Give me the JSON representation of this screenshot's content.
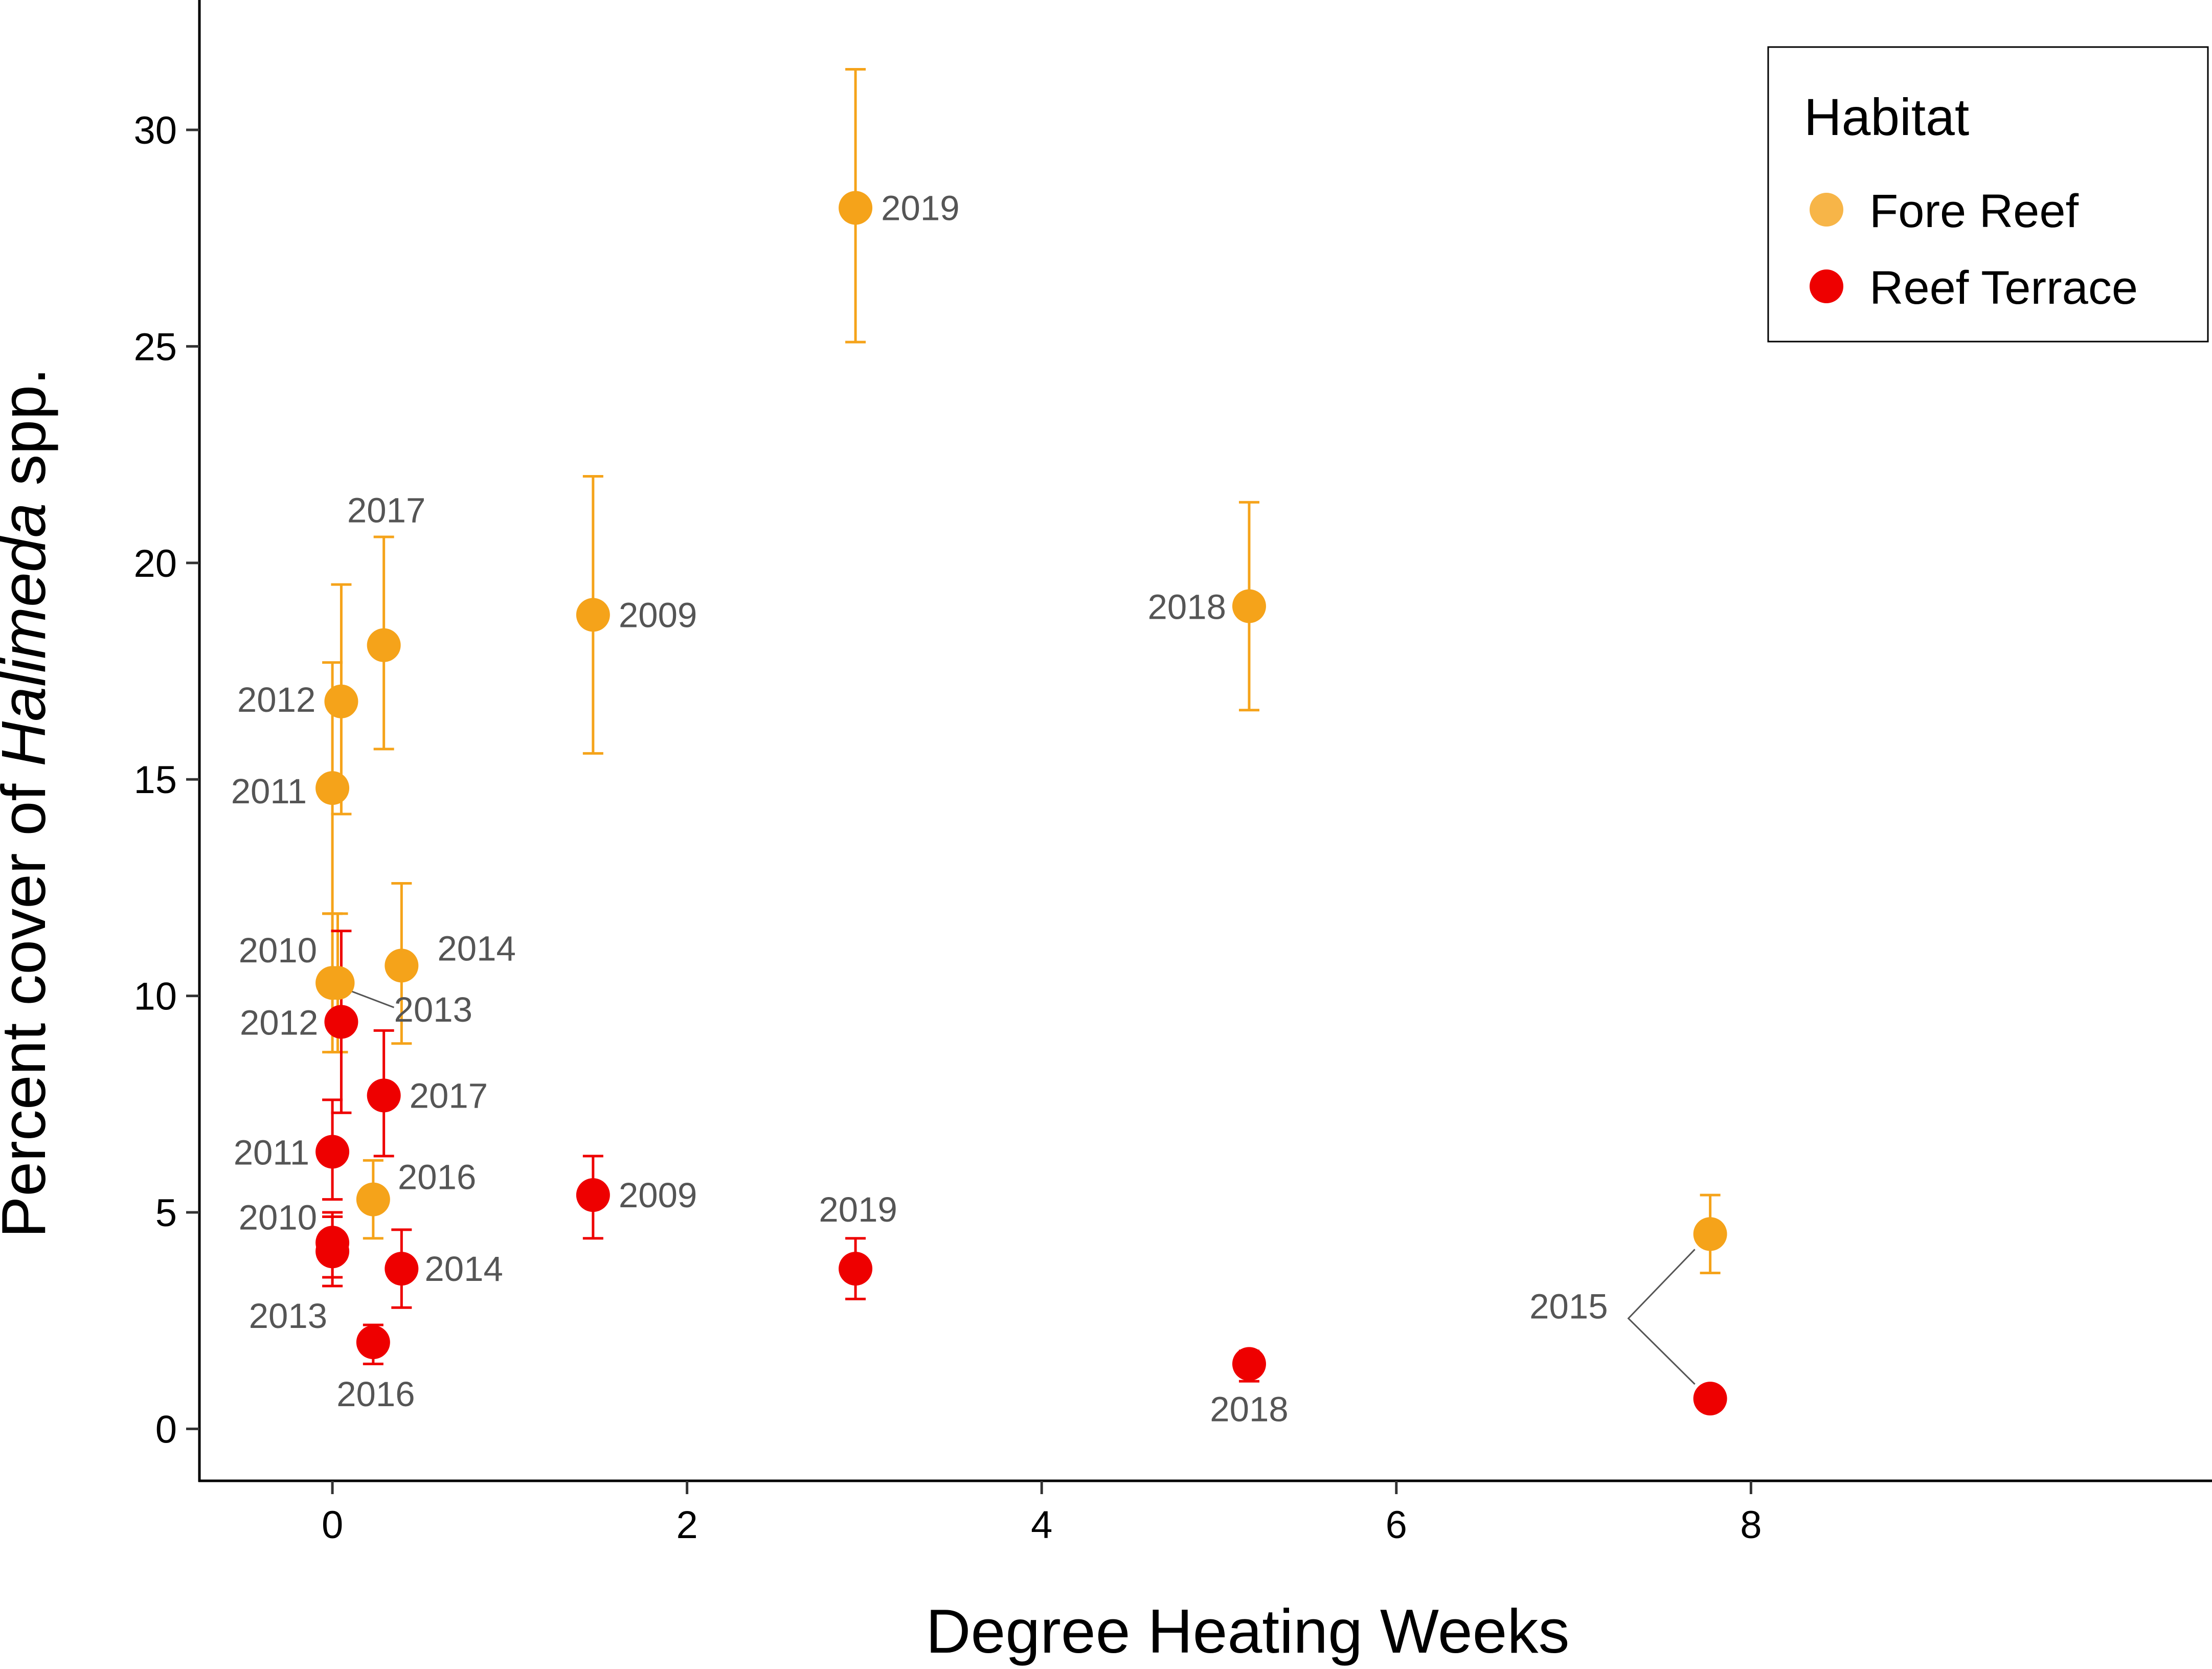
{
  "chart_data": {
    "type": "scatter",
    "title": "",
    "xlabel": "Degree Heating Weeks",
    "ylabel_prefix": "Percent cover of ",
    "ylabel_italic": "Halimeda",
    "ylabel_suffix": " spp.",
    "xlim": [
      -0.75,
      10.6
    ],
    "ylim": [
      -1.2,
      33
    ],
    "x_ticks": [
      0,
      2,
      4,
      6,
      8
    ],
    "y_ticks": [
      0,
      5,
      10,
      15,
      20,
      25,
      30
    ],
    "grid": false,
    "legend": {
      "title": "Habitat",
      "position": "top-right",
      "entries": [
        {
          "label": "Fore Reef",
          "color": "#F5A31A"
        },
        {
          "label": "Reef Terrace",
          "color": "#EE0000"
        }
      ]
    },
    "series": [
      {
        "name": "Fore Reef",
        "color": "#F5A31A",
        "points": [
          {
            "year": "2009",
            "x": 1.47,
            "y": 18.8,
            "lo": 15.6,
            "hi": 22.0
          },
          {
            "year": "2010",
            "x": 0.0,
            "y": 10.3,
            "lo": 8.7,
            "hi": 11.9
          },
          {
            "year": "2011",
            "x": 0.0,
            "y": 14.8,
            "lo": 11.9,
            "hi": 17.7
          },
          {
            "year": "2012",
            "x": 0.05,
            "y": 16.8,
            "lo": 14.2,
            "hi": 19.5
          },
          {
            "year": "2013",
            "x": 0.03,
            "y": 10.3,
            "lo": 8.7,
            "hi": 11.9
          },
          {
            "year": "2014",
            "x": 0.39,
            "y": 10.7,
            "lo": 8.9,
            "hi": 12.6
          },
          {
            "year": "2015",
            "x": 7.77,
            "y": 4.5,
            "lo": 3.6,
            "hi": 5.4
          },
          {
            "year": "2016",
            "x": 0.23,
            "y": 5.3,
            "lo": 4.4,
            "hi": 6.2
          },
          {
            "year": "2017",
            "x": 0.29,
            "y": 18.1,
            "lo": 15.7,
            "hi": 20.6
          },
          {
            "year": "2018",
            "x": 5.17,
            "y": 19.0,
            "lo": 16.6,
            "hi": 21.4
          },
          {
            "year": "2019",
            "x": 2.95,
            "y": 28.2,
            "lo": 25.1,
            "hi": 31.4
          }
        ]
      },
      {
        "name": "Reef Terrace",
        "color": "#EE0000",
        "points": [
          {
            "year": "2009",
            "x": 1.47,
            "y": 5.4,
            "lo": 4.4,
            "hi": 6.3
          },
          {
            "year": "2010",
            "x": 0.0,
            "y": 4.3,
            "lo": 3.5,
            "hi": 5.0
          },
          {
            "year": "2011",
            "x": 0.0,
            "y": 6.4,
            "lo": 5.3,
            "hi": 7.6
          },
          {
            "year": "2012",
            "x": 0.05,
            "y": 9.4,
            "lo": 7.3,
            "hi": 11.5
          },
          {
            "year": "2013",
            "x": 0.0,
            "y": 4.1,
            "lo": 3.3,
            "hi": 4.9
          },
          {
            "year": "2014",
            "x": 0.39,
            "y": 3.7,
            "lo": 2.8,
            "hi": 4.6
          },
          {
            "year": "2015",
            "x": 7.77,
            "y": 0.7,
            "lo": 0.6,
            "hi": 0.8
          },
          {
            "year": "2016",
            "x": 0.23,
            "y": 2.0,
            "lo": 1.5,
            "hi": 2.4
          },
          {
            "year": "2017",
            "x": 0.29,
            "y": 7.7,
            "lo": 6.3,
            "hi": 9.2
          },
          {
            "year": "2018",
            "x": 5.17,
            "y": 1.5,
            "lo": 1.1,
            "hi": 1.8
          },
          {
            "year": "2019",
            "x": 2.95,
            "y": 3.7,
            "lo": 3.0,
            "hi": 4.4
          }
        ]
      }
    ]
  }
}
